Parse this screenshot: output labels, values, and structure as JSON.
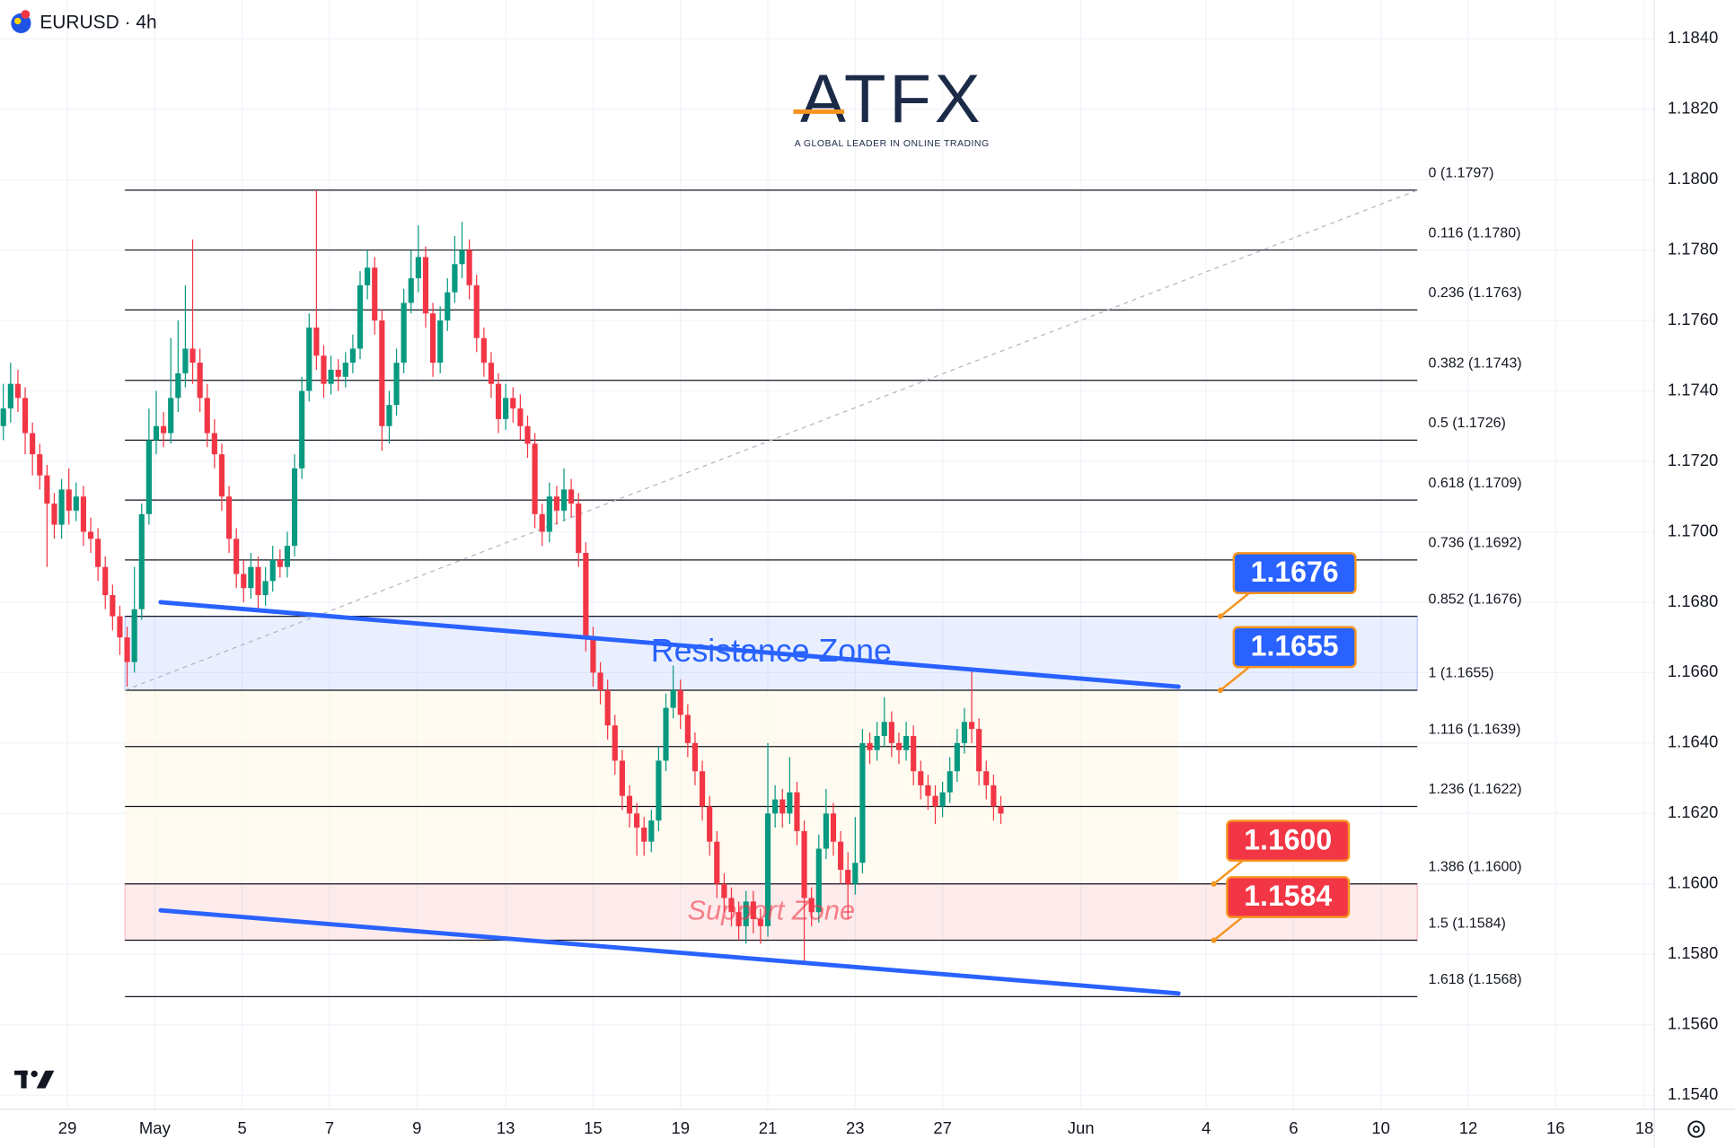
{
  "header": {
    "symbol": "EURUSD · 4h"
  },
  "logo": {
    "name": "ATFX",
    "tagline": "A GLOBAL LEADER IN ONLINE TRADING"
  },
  "chart_data": {
    "type": "candlestick",
    "up_color": "#089981",
    "down_color": "#f23645",
    "open": [
      1.173,
      1.1735,
      1.1742,
      1.1738,
      1.1728,
      1.1722,
      1.1716,
      1.1708,
      1.1702,
      1.1712,
      1.1706,
      1.171,
      1.17,
      1.1698,
      1.169,
      1.1682,
      1.1676,
      1.167,
      1.1663,
      1.1678,
      1.1705,
      1.1726,
      1.173,
      1.1728,
      1.1738,
      1.1745,
      1.1752,
      1.1748,
      1.1738,
      1.1728,
      1.1722,
      1.171,
      1.1698,
      1.1688,
      1.1684,
      1.169,
      1.1682,
      1.1686,
      1.1692,
      1.169,
      1.1696,
      1.1718,
      1.174,
      1.1758,
      1.175,
      1.1742,
      1.1746,
      1.1744,
      1.1748,
      1.1752,
      1.177,
      1.1775,
      1.176,
      1.173,
      1.1736,
      1.1748,
      1.1765,
      1.1772,
      1.1778,
      1.1762,
      1.1748,
      1.176,
      1.1768,
      1.1776,
      1.178,
      1.177,
      1.1755,
      1.1748,
      1.1742,
      1.1732,
      1.1738,
      1.1735,
      1.173,
      1.1725,
      1.1705,
      1.17,
      1.171,
      1.1706,
      1.1712,
      1.1708,
      1.1694,
      1.167,
      1.166,
      1.1655,
      1.1645,
      1.1635,
      1.1625,
      1.162,
      1.1616,
      1.1612,
      1.1618,
      1.1635,
      1.165,
      1.1655,
      1.1648,
      1.164,
      1.1632,
      1.1622,
      1.1612,
      1.16,
      1.1596,
      1.1592,
      1.1588,
      1.1595,
      1.159,
      1.1588,
      1.162,
      1.1624,
      1.162,
      1.1626,
      1.1615,
      1.1596,
      1.1592,
      1.161,
      1.162,
      1.1612,
      1.1604,
      1.16,
      1.1606,
      1.164,
      1.1638,
      1.1642,
      1.1646,
      1.164,
      1.1638,
      1.1642,
      1.1632,
      1.1628,
      1.1625,
      1.1622,
      1.1626,
      1.1632,
      1.164,
      1.1646,
      1.1644,
      1.1632,
      1.1628,
      1.1622
    ],
    "high": [
      1.1742,
      1.1748,
      1.1746,
      1.1741,
      1.1731,
      1.1725,
      1.1719,
      1.1711,
      1.1715,
      1.1718,
      1.1714,
      1.1713,
      1.1704,
      1.1701,
      1.1693,
      1.1685,
      1.1679,
      1.1673,
      1.169,
      1.1708,
      1.1735,
      1.174,
      1.1734,
      1.1755,
      1.176,
      1.177,
      1.1783,
      1.1752,
      1.1742,
      1.1732,
      1.1725,
      1.1713,
      1.1701,
      1.1692,
      1.1694,
      1.1693,
      1.169,
      1.1696,
      1.1695,
      1.17,
      1.1722,
      1.1744,
      1.1762,
      1.1797,
      1.1753,
      1.175,
      1.1749,
      1.1751,
      1.1756,
      1.1774,
      1.178,
      1.1778,
      1.1763,
      1.174,
      1.1752,
      1.1769,
      1.178,
      1.1787,
      1.1781,
      1.1765,
      1.1764,
      1.1772,
      1.1784,
      1.1788,
      1.1783,
      1.1773,
      1.1758,
      1.1751,
      1.1745,
      1.1742,
      1.1741,
      1.1739,
      1.1733,
      1.1728,
      1.1708,
      1.1714,
      1.1713,
      1.1718,
      1.1715,
      1.1711,
      1.1697,
      1.1673,
      1.1663,
      1.1658,
      1.1648,
      1.1638,
      1.1628,
      1.1623,
      1.1619,
      1.1621,
      1.1639,
      1.1654,
      1.1662,
      1.1658,
      1.1651,
      1.1643,
      1.1635,
      1.1625,
      1.1615,
      1.1603,
      1.1599,
      1.1595,
      1.1598,
      1.1598,
      1.1593,
      1.164,
      1.1628,
      1.1627,
      1.1636,
      1.1629,
      1.1618,
      1.1599,
      1.1614,
      1.1627,
      1.1623,
      1.1615,
      1.1609,
      1.1619,
      1.1644,
      1.1643,
      1.1646,
      1.1653,
      1.1649,
      1.1643,
      1.1646,
      1.1645,
      1.1635,
      1.1631,
      1.1628,
      1.1629,
      1.1636,
      1.1644,
      1.165,
      1.1661,
      1.1647,
      1.1635,
      1.1631,
      1.1625
    ],
    "low": [
      1.1726,
      1.1731,
      1.1734,
      1.1722,
      1.1716,
      1.1712,
      1.169,
      1.1698,
      1.1698,
      1.1702,
      1.1703,
      1.1696,
      1.1694,
      1.1686,
      1.1678,
      1.1672,
      1.1665,
      1.1656,
      1.166,
      1.1675,
      1.1702,
      1.1722,
      1.1724,
      1.1725,
      1.1734,
      1.1741,
      1.1742,
      1.1734,
      1.1724,
      1.1718,
      1.1706,
      1.1694,
      1.1684,
      1.168,
      1.1681,
      1.1678,
      1.1679,
      1.1683,
      1.1687,
      1.1687,
      1.1693,
      1.1715,
      1.1737,
      1.1746,
      1.1738,
      1.1739,
      1.174,
      1.1741,
      1.1745,
      1.1749,
      1.1766,
      1.1756,
      1.1723,
      1.1725,
      1.1733,
      1.1745,
      1.1762,
      1.1768,
      1.1758,
      1.1744,
      1.1745,
      1.1757,
      1.1765,
      1.1772,
      1.1766,
      1.1751,
      1.1744,
      1.1738,
      1.1728,
      1.1729,
      1.1731,
      1.1726,
      1.1721,
      1.1701,
      1.1696,
      1.1697,
      1.1702,
      1.1703,
      1.1704,
      1.169,
      1.1666,
      1.1656,
      1.1651,
      1.1641,
      1.1631,
      1.1621,
      1.1616,
      1.1608,
      1.1608,
      1.1609,
      1.1615,
      1.1632,
      1.1647,
      1.1644,
      1.1636,
      1.1628,
      1.1618,
      1.1608,
      1.1596,
      1.1592,
      1.1588,
      1.1584,
      1.1583,
      1.1586,
      1.1583,
      1.1585,
      1.1616,
      1.1616,
      1.1617,
      1.1611,
      1.1577,
      1.1588,
      1.1589,
      1.1607,
      1.1608,
      1.16,
      1.159,
      1.1597,
      1.1603,
      1.1634,
      1.1635,
      1.1639,
      1.1636,
      1.1634,
      1.1635,
      1.1628,
      1.1624,
      1.1621,
      1.1617,
      1.1619,
      1.1623,
      1.1629,
      1.1637,
      1.164,
      1.1628,
      1.1624,
      1.1618,
      1.1617
    ],
    "close": [
      1.1735,
      1.1742,
      1.1738,
      1.1728,
      1.1722,
      1.1716,
      1.1708,
      1.1702,
      1.1712,
      1.1706,
      1.171,
      1.17,
      1.1698,
      1.169,
      1.1682,
      1.1676,
      1.167,
      1.1663,
      1.1678,
      1.1705,
      1.1726,
      1.173,
      1.1728,
      1.1738,
      1.1745,
      1.1752,
      1.1748,
      1.1738,
      1.1728,
      1.1722,
      1.171,
      1.1698,
      1.1688,
      1.1684,
      1.169,
      1.1682,
      1.1686,
      1.1692,
      1.169,
      1.1696,
      1.1718,
      1.174,
      1.1758,
      1.175,
      1.1742,
      1.1746,
      1.1744,
      1.1748,
      1.1752,
      1.177,
      1.1775,
      1.176,
      1.173,
      1.1736,
      1.1748,
      1.1765,
      1.1772,
      1.1778,
      1.1762,
      1.1748,
      1.176,
      1.1768,
      1.1776,
      1.178,
      1.177,
      1.1755,
      1.1748,
      1.1742,
      1.1732,
      1.1738,
      1.1735,
      1.173,
      1.1725,
      1.1705,
      1.17,
      1.171,
      1.1706,
      1.1712,
      1.1708,
      1.1694,
      1.167,
      1.166,
      1.1655,
      1.1645,
      1.1635,
      1.1625,
      1.162,
      1.1616,
      1.1612,
      1.1618,
      1.1635,
      1.165,
      1.1655,
      1.1648,
      1.164,
      1.1632,
      1.1622,
      1.1612,
      1.16,
      1.1596,
      1.1592,
      1.1588,
      1.1595,
      1.159,
      1.1588,
      1.162,
      1.1624,
      1.162,
      1.1626,
      1.1615,
      1.1596,
      1.1592,
      1.161,
      1.162,
      1.1612,
      1.1604,
      1.16,
      1.1606,
      1.164,
      1.1638,
      1.1642,
      1.1646,
      1.164,
      1.1638,
      1.1642,
      1.1632,
      1.1628,
      1.1625,
      1.1622,
      1.1626,
      1.1632,
      1.164,
      1.1646,
      1.1644,
      1.1632,
      1.1628,
      1.1622,
      1.162
    ],
    "xlim": [
      -0.46,
      226.74
    ],
    "xticks": [
      {
        "value": 8.8,
        "label": "29"
      },
      {
        "value": 20.8,
        "label": "May"
      },
      {
        "value": 32.8,
        "label": "5"
      },
      {
        "value": 44.8,
        "label": "7"
      },
      {
        "value": 56.8,
        "label": "9"
      },
      {
        "value": 69.0,
        "label": "13"
      },
      {
        "value": 81.0,
        "label": "15"
      },
      {
        "value": 93.0,
        "label": "19"
      },
      {
        "value": 105.0,
        "label": "21"
      },
      {
        "value": 117.0,
        "label": "23"
      },
      {
        "value": 129.0,
        "label": "27"
      },
      {
        "value": 148.0,
        "label": "Jun"
      },
      {
        "value": 165.2,
        "label": "4"
      },
      {
        "value": 177.2,
        "label": "6"
      },
      {
        "value": 189.2,
        "label": "10"
      },
      {
        "value": 201.2,
        "label": "12"
      },
      {
        "value": 213.2,
        "label": "16"
      },
      {
        "value": 225.4,
        "label": "18"
      }
    ],
    "ylim": [
      1.1536,
      1.1851
    ],
    "yticks": [
      {
        "value": 1.184,
        "label": "1.1840"
      },
      {
        "value": 1.182,
        "label": "1.1820"
      },
      {
        "value": 1.18,
        "label": "1.1800"
      },
      {
        "value": 1.178,
        "label": "1.1780"
      },
      {
        "value": 1.176,
        "label": "1.1760"
      },
      {
        "value": 1.174,
        "label": "1.1740"
      },
      {
        "value": 1.172,
        "label": "1.1720"
      },
      {
        "value": 1.17,
        "label": "1.1700"
      },
      {
        "value": 1.168,
        "label": "1.1680"
      },
      {
        "value": 1.166,
        "label": "1.1660"
      },
      {
        "value": 1.164,
        "label": "1.1640"
      },
      {
        "value": 1.162,
        "label": "1.1620"
      },
      {
        "value": 1.16,
        "label": "1.1600"
      },
      {
        "value": 1.158,
        "label": "1.1580"
      },
      {
        "value": 1.156,
        "label": "1.1560"
      },
      {
        "value": 1.154,
        "label": "1.1540"
      }
    ],
    "grid": true,
    "fib_anchor": {
      "x": [
        16.7,
        194.2
      ],
      "y": [
        1.1655,
        1.1797
      ]
    },
    "fib_levels": [
      {
        "value": 1.1797,
        "label": "0 (1.1797)"
      },
      {
        "value": 1.178,
        "label": "0.116 (1.1780)"
      },
      {
        "value": 1.1763,
        "label": "0.236 (1.1763)"
      },
      {
        "value": 1.1743,
        "label": "0.382 (1.1743)"
      },
      {
        "value": 1.1726,
        "label": "0.5 (1.1726)"
      },
      {
        "value": 1.1709,
        "label": "0.618 (1.1709)"
      },
      {
        "value": 1.1692,
        "label": "0.736 (1.1692)"
      },
      {
        "value": 1.1676,
        "label": "0.852 (1.1676)"
      },
      {
        "value": 1.1655,
        "label": "1 (1.1655)"
      },
      {
        "value": 1.1639,
        "label": "1.116 (1.1639)"
      },
      {
        "value": 1.1622,
        "label": "1.236 (1.1622)"
      },
      {
        "value": 1.16,
        "label": "1.386 (1.1600)"
      },
      {
        "value": 1.1584,
        "label": "1.5 (1.1584)"
      },
      {
        "value": 1.1568,
        "label": "1.618 (1.1568)"
      }
    ],
    "zones": [
      {
        "label": "Resistance Zone",
        "range": [
          1.1655,
          1.1676
        ],
        "color": "#2962ff"
      },
      {
        "label": "Support Zone",
        "range": [
          1.1584,
          1.16
        ],
        "color": "#f23645"
      }
    ],
    "trendlines": [
      {
        "x": [
          21.6,
          161.4
        ],
        "y": [
          1.168,
          1.1656
        ],
        "color": "#2962ff"
      },
      {
        "x": [
          21.6,
          161.4
        ],
        "y": [
          1.15925,
          1.15689
        ],
        "color": "#2962ff"
      }
    ],
    "callouts": [
      {
        "value": 1.1676,
        "label": "1.1676",
        "color": "#2962ff"
      },
      {
        "value": 1.1655,
        "label": "1.1655",
        "color": "#2962ff"
      },
      {
        "value": 1.16,
        "label": "1.1600",
        "color": "#f23645"
      },
      {
        "value": 1.1584,
        "label": "1.1584",
        "color": "#f23645"
      }
    ]
  }
}
